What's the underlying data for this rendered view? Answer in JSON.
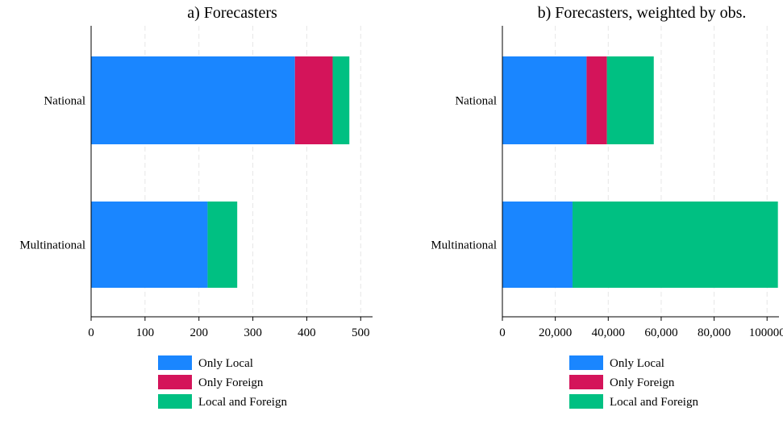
{
  "chart_data": [
    {
      "type": "bar",
      "orientation": "horizontal",
      "stacked": true,
      "title": "a) Forecasters",
      "categories": [
        "National",
        "Multinational"
      ],
      "series": [
        {
          "name": "Only Local",
          "values": [
            378,
            216
          ],
          "color": "#1a86ff"
        },
        {
          "name": "Only Foreign",
          "values": [
            70,
            0
          ],
          "color": "#d4145a"
        },
        {
          "name": "Local and Foreign",
          "values": [
            31,
            55
          ],
          "color": "#00c082"
        }
      ],
      "xlim": [
        0,
        522
      ],
      "xticks": [
        0,
        100,
        200,
        300,
        400,
        500
      ],
      "xtick_labels": [
        "0",
        "100",
        "200",
        "300",
        "400",
        "500"
      ],
      "grid": "vertical dashed",
      "legend": "bottom"
    },
    {
      "type": "bar",
      "orientation": "horizontal",
      "stacked": true,
      "title": "b) Forecasters, weighted by obs.",
      "categories": [
        "National",
        "Multinational"
      ],
      "series": [
        {
          "name": "Only Local",
          "values": [
            31800,
            26500
          ],
          "color": "#1a86ff"
        },
        {
          "name": "Only Foreign",
          "values": [
            7700,
            0
          ],
          "color": "#d4145a"
        },
        {
          "name": "Local and Foreign",
          "values": [
            17700,
            77600
          ],
          "color": "#00c082"
        }
      ],
      "xlim": [
        0,
        104500
      ],
      "xticks": [
        0,
        20000,
        40000,
        60000,
        80000,
        100000
      ],
      "xtick_labels": [
        "0",
        "20,000",
        "40,000",
        "60,000",
        "80,000",
        "100000"
      ],
      "grid": "vertical dashed",
      "legend": "bottom"
    }
  ]
}
